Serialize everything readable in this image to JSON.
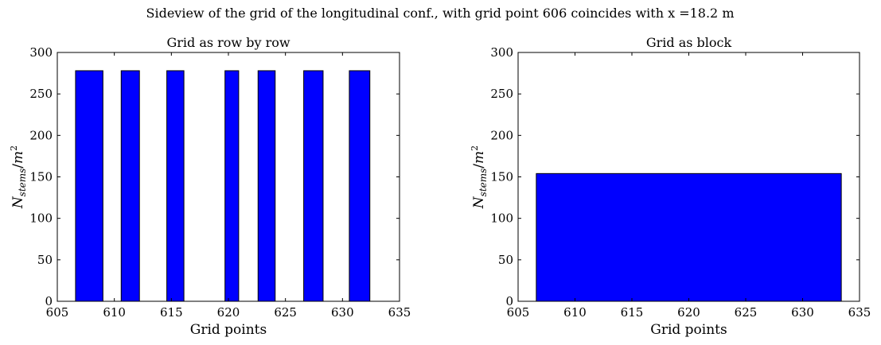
{
  "figure": {
    "title": "Sideview of the grid of the longitudinal conf., with grid point 606 coincides with x =18.2 m"
  },
  "chart_data": [
    {
      "type": "bar",
      "title": "Grid as row by row",
      "xlabel": "Grid points",
      "ylabel_main": "N",
      "ylabel_sub": "stems",
      "ylabel_tail": "/m",
      "ylabel_sup": "2",
      "xlim": [
        605,
        635
      ],
      "ylim": [
        0,
        300
      ],
      "xticks": [
        605,
        610,
        615,
        620,
        625,
        630,
        635
      ],
      "yticks": [
        0,
        50,
        100,
        150,
        200,
        250,
        300
      ],
      "bar_color": "#0000ff",
      "bars": [
        {
          "x0": 606.6,
          "x1": 609.0,
          "value": 278
        },
        {
          "x0": 610.6,
          "x1": 612.2,
          "value": 278
        },
        {
          "x0": 614.6,
          "x1": 616.1,
          "value": 278
        },
        {
          "x0": 619.7,
          "x1": 620.9,
          "value": 278
        },
        {
          "x0": 622.6,
          "x1": 624.1,
          "value": 278
        },
        {
          "x0": 626.6,
          "x1": 628.3,
          "value": 278
        },
        {
          "x0": 630.6,
          "x1": 632.4,
          "value": 278
        }
      ]
    },
    {
      "type": "bar",
      "title": "Grid as block",
      "xlabel": "Grid points",
      "ylabel_main": "N",
      "ylabel_sub": "stems",
      "ylabel_tail": "/m",
      "ylabel_sup": "2",
      "xlim": [
        605,
        635
      ],
      "ylim": [
        0,
        300
      ],
      "xticks": [
        605,
        610,
        615,
        620,
        625,
        630,
        635
      ],
      "yticks": [
        0,
        50,
        100,
        150,
        200,
        250,
        300
      ],
      "bar_color": "#0000ff",
      "bars": [
        {
          "x0": 606.6,
          "x1": 633.4,
          "value": 154
        }
      ]
    }
  ]
}
